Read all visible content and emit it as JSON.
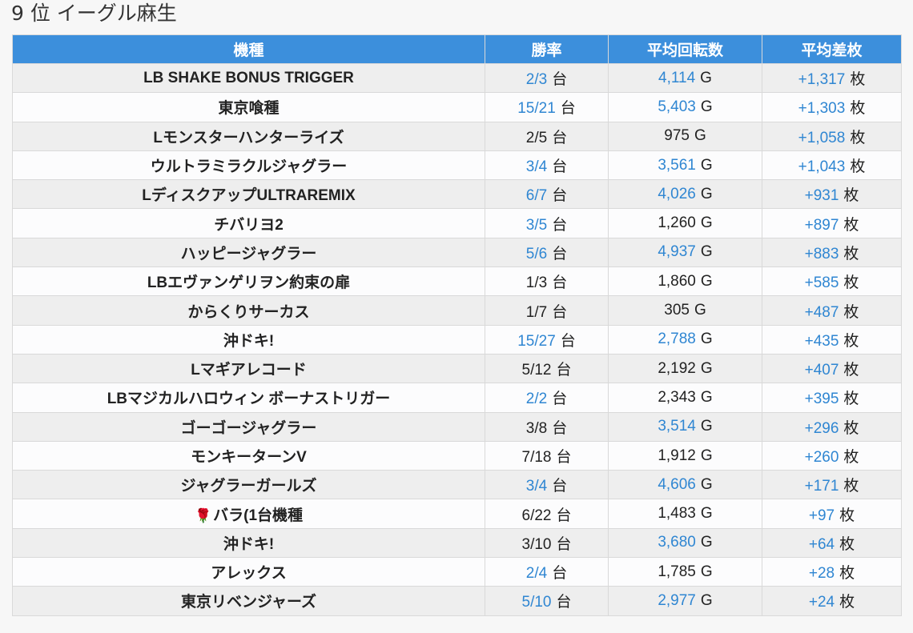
{
  "page": {
    "title": "9 位 イーグル麻生"
  },
  "colors": {
    "header_bg": "#3c8fdc",
    "highlight": "#2f86d2",
    "row_odd": "#eeeeee",
    "row_even": "#fcfcfd"
  },
  "table": {
    "headers": [
      "機種",
      "勝率",
      "平均回転数",
      "平均差枚"
    ],
    "units": {
      "rate": "台",
      "spins": "G",
      "diff": "枚"
    },
    "rows": [
      {
        "name": "LB SHAKE BONUS TRIGGER",
        "rate": "2/3",
        "rate_hl": true,
        "spins": "4,114",
        "spins_hl": true,
        "diff": "+1,317",
        "diff_hl": true
      },
      {
        "name": "東京喰種",
        "rate": "15/21",
        "rate_hl": true,
        "spins": "5,403",
        "spins_hl": true,
        "diff": "+1,303",
        "diff_hl": true
      },
      {
        "name": "Lモンスターハンターライズ",
        "rate": "2/5",
        "rate_hl": false,
        "spins": "975",
        "spins_hl": false,
        "diff": "+1,058",
        "diff_hl": true
      },
      {
        "name": "ウルトラミラクルジャグラー",
        "rate": "3/4",
        "rate_hl": true,
        "spins": "3,561",
        "spins_hl": true,
        "diff": "+1,043",
        "diff_hl": true
      },
      {
        "name": "LディスクアップULTRAREMIX",
        "rate": "6/7",
        "rate_hl": true,
        "spins": "4,026",
        "spins_hl": true,
        "diff": "+931",
        "diff_hl": true
      },
      {
        "name": "チバリヨ2",
        "rate": "3/5",
        "rate_hl": true,
        "spins": "1,260",
        "spins_hl": false,
        "diff": "+897",
        "diff_hl": true
      },
      {
        "name": "ハッピージャグラー",
        "rate": "5/6",
        "rate_hl": true,
        "spins": "4,937",
        "spins_hl": true,
        "diff": "+883",
        "diff_hl": true
      },
      {
        "name": "LBエヴァンゲリヲン約束の扉",
        "rate": "1/3",
        "rate_hl": false,
        "spins": "1,860",
        "spins_hl": false,
        "diff": "+585",
        "diff_hl": true
      },
      {
        "name": "からくりサーカス",
        "rate": "1/7",
        "rate_hl": false,
        "spins": "305",
        "spins_hl": false,
        "diff": "+487",
        "diff_hl": true
      },
      {
        "name": "沖ドキ!",
        "rate": "15/27",
        "rate_hl": true,
        "spins": "2,788",
        "spins_hl": true,
        "diff": "+435",
        "diff_hl": true
      },
      {
        "name": "Lマギアレコード",
        "rate": "5/12",
        "rate_hl": false,
        "spins": "2,192",
        "spins_hl": false,
        "diff": "+407",
        "diff_hl": true
      },
      {
        "name": "LBマジカルハロウィン ボーナストリガー",
        "rate": "2/2",
        "rate_hl": true,
        "spins": "2,343",
        "spins_hl": false,
        "diff": "+395",
        "diff_hl": true
      },
      {
        "name": "ゴーゴージャグラー",
        "rate": "3/8",
        "rate_hl": false,
        "spins": "3,514",
        "spins_hl": true,
        "diff": "+296",
        "diff_hl": true
      },
      {
        "name": "モンキーターンV",
        "rate": "7/18",
        "rate_hl": false,
        "spins": "1,912",
        "spins_hl": false,
        "diff": "+260",
        "diff_hl": true
      },
      {
        "name": "ジャグラーガールズ",
        "rate": "3/4",
        "rate_hl": true,
        "spins": "4,606",
        "spins_hl": true,
        "diff": "+171",
        "diff_hl": true
      },
      {
        "name": "バラ(1台機種",
        "icon": "🌹",
        "rate": "6/22",
        "rate_hl": false,
        "spins": "1,483",
        "spins_hl": false,
        "diff": "+97",
        "diff_hl": true
      },
      {
        "name": "沖ドキ!",
        "rate": "3/10",
        "rate_hl": false,
        "spins": "3,680",
        "spins_hl": true,
        "diff": "+64",
        "diff_hl": true
      },
      {
        "name": "アレックス",
        "rate": "2/4",
        "rate_hl": true,
        "spins": "1,785",
        "spins_hl": false,
        "diff": "+28",
        "diff_hl": true
      },
      {
        "name": "東京リベンジャーズ",
        "rate": "5/10",
        "rate_hl": true,
        "spins": "2,977",
        "spins_hl": true,
        "diff": "+24",
        "diff_hl": true
      }
    ]
  }
}
